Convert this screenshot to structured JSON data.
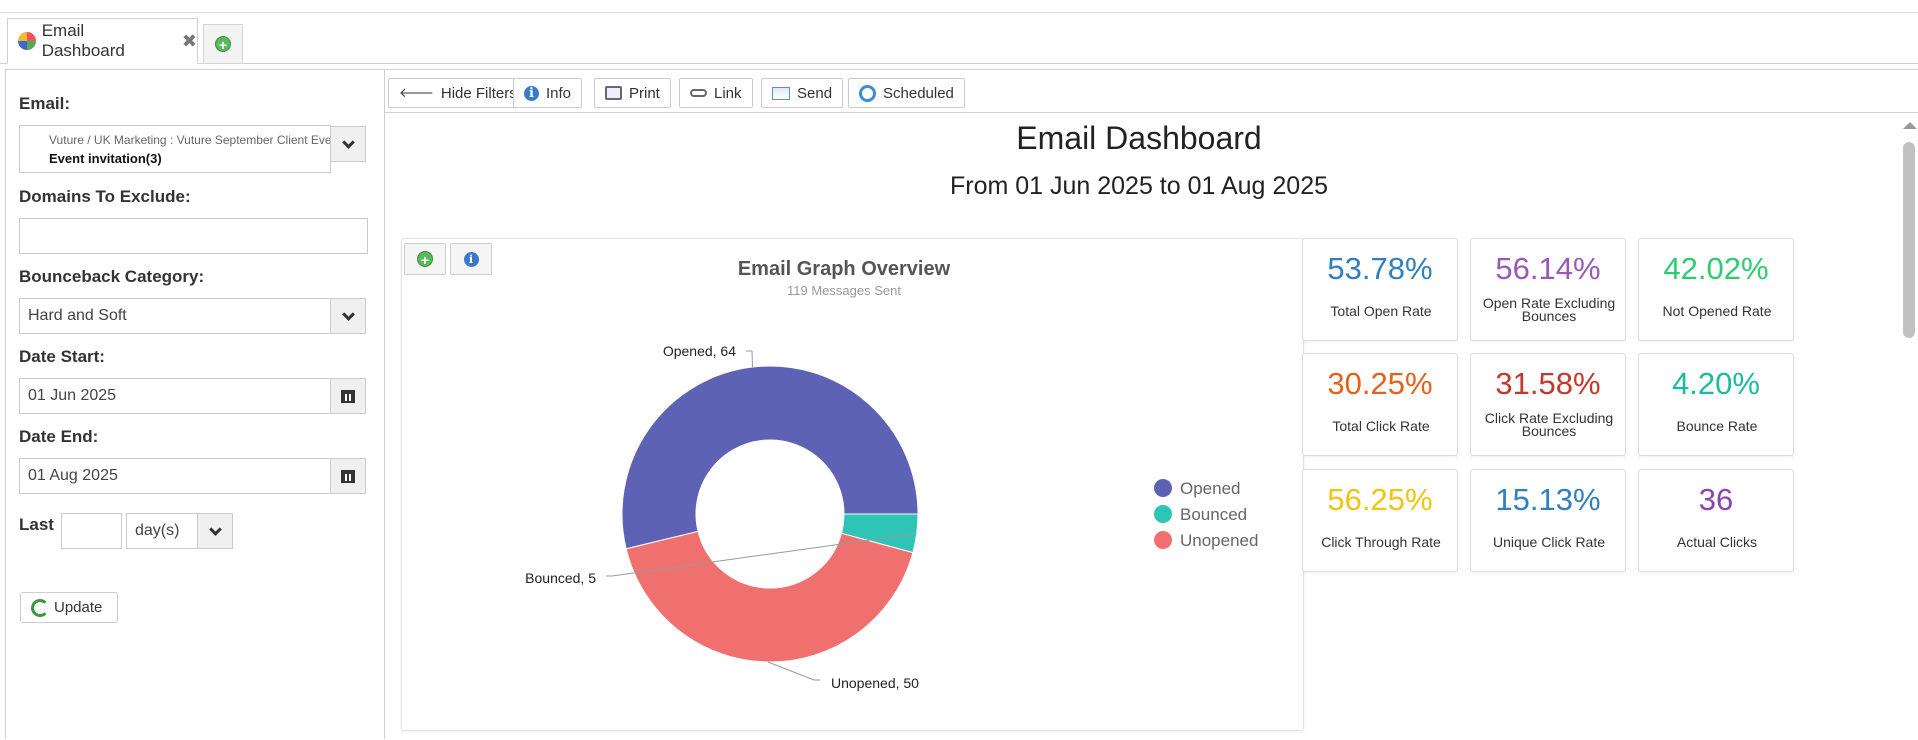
{
  "tab": {
    "title": "Email Dashboard"
  },
  "filters": {
    "email_label": "Email:",
    "email_path": "Vuture / UK Marketing : Vuture September Client Event",
    "email_name": "Event invitation(3)",
    "domains_label": "Domains To Exclude:",
    "domains_value": "",
    "bounce_label": "Bounceback Category:",
    "bounce_value": "Hard and Soft",
    "date_start_label": "Date Start:",
    "date_start_value": "01 Jun 2025",
    "date_end_label": "Date End:",
    "date_end_value": "01 Aug 2025",
    "last_label": "Last",
    "last_value": "",
    "last_unit": "day(s)",
    "update_label": "Update"
  },
  "toolbar": {
    "hide_filters": "Hide Filters",
    "info": "Info",
    "print": "Print",
    "link": "Link",
    "send": "Send",
    "scheduled": "Scheduled"
  },
  "dashboard": {
    "title": "Email Dashboard",
    "subtitle": "From 01 Jun 2025 to 01 Aug 2025"
  },
  "chart_data": {
    "type": "pie",
    "title": "Email Graph Overview",
    "subtitle": "119 Messages Sent",
    "categories": [
      "Opened",
      "Bounced",
      "Unopened"
    ],
    "values": [
      64,
      5,
      50
    ],
    "colors": [
      "#5e62b5",
      "#2ec4b6",
      "#f07070"
    ],
    "data_labels": [
      "Opened, 64",
      "Bounced, 5",
      "Unopened, 50"
    ],
    "legend_position": "right"
  },
  "stats": [
    {
      "value": "53.78%",
      "label": "Total Open Rate",
      "color": "#2f7fc1"
    },
    {
      "value": "56.14%",
      "label": "Open Rate Excluding Bounces",
      "color": "#9b59b6"
    },
    {
      "value": "42.02%",
      "label": "Not Opened Rate",
      "color": "#2ecc71"
    },
    {
      "value": "30.25%",
      "label": "Total Click Rate",
      "color": "#e5611a"
    },
    {
      "value": "31.58%",
      "label": "Click Rate Excluding Bounces",
      "color": "#c0392b"
    },
    {
      "value": "4.20%",
      "label": "Bounce Rate",
      "color": "#1abc9c"
    },
    {
      "value": "56.25%",
      "label": "Click Through Rate",
      "color": "#f1c40f"
    },
    {
      "value": "15.13%",
      "label": "Unique Click Rate",
      "color": "#2f7fc1"
    },
    {
      "value": "36",
      "label": "Actual Clicks",
      "color": "#8e44ad"
    }
  ]
}
